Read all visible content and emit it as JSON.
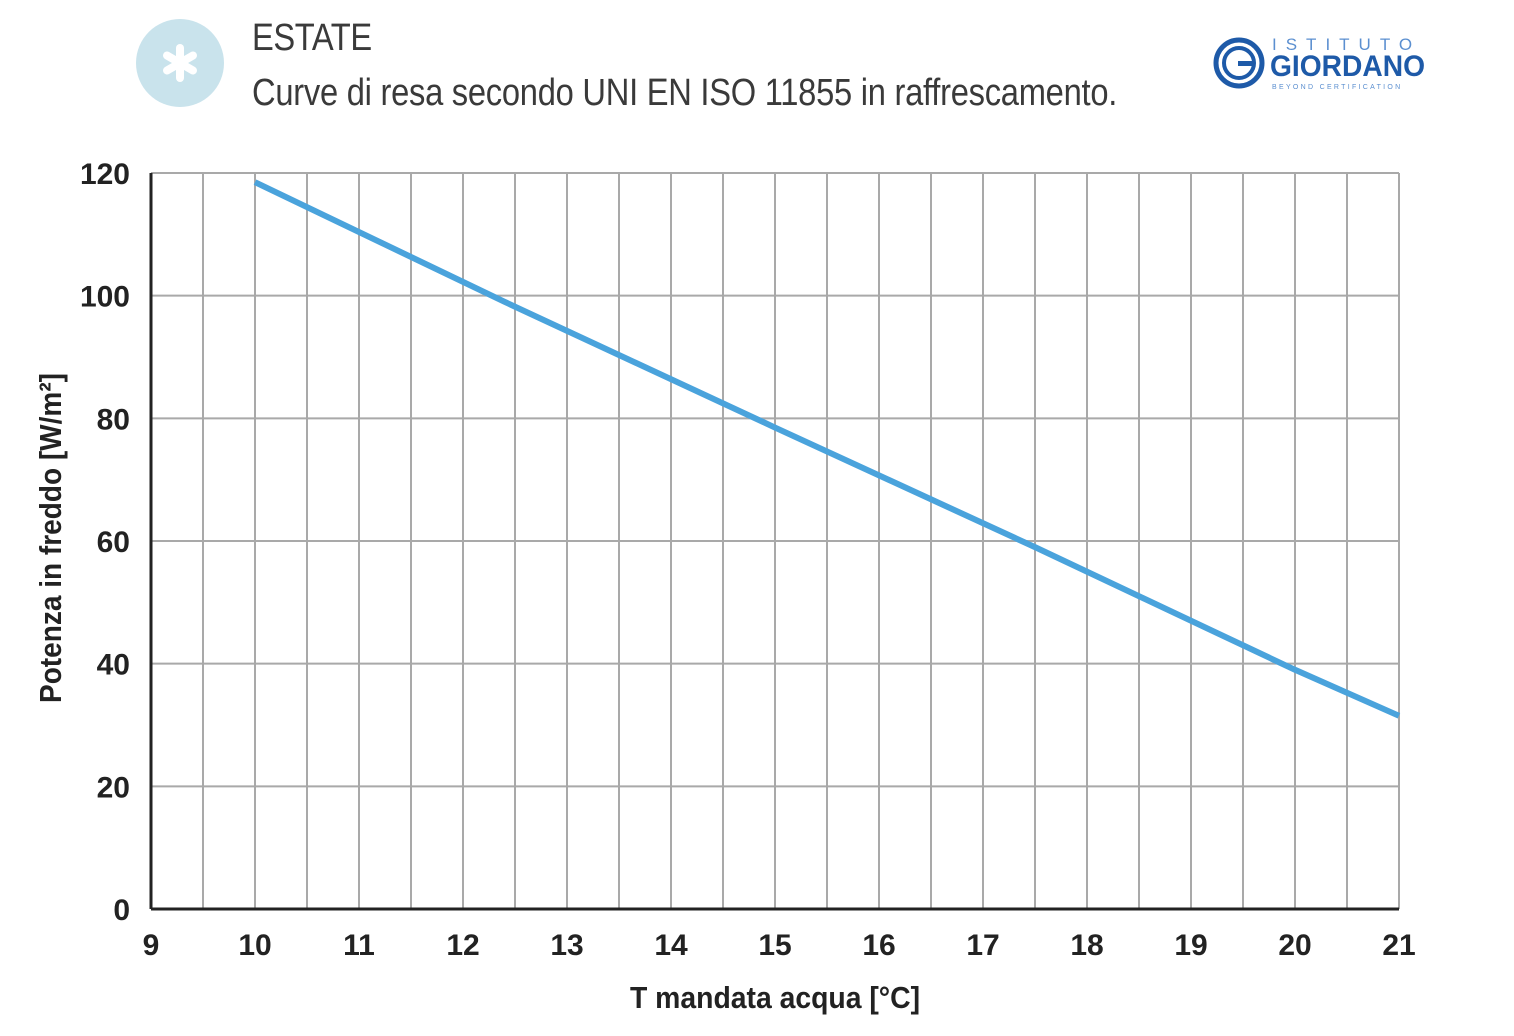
{
  "header": {
    "title": "ESTATE",
    "subtitle": "Curve di resa secondo UNI EN ISO 11855 in raffrescamento.",
    "icon": "snowflake-icon",
    "icon_bg_color": "#c9e3ec"
  },
  "logo": {
    "top_text": "ISTITUTO",
    "main_text": "GIORDANO",
    "tagline": "BEYOND CERTIFICATION",
    "color": "#1e5aa8"
  },
  "chart_data": {
    "type": "line",
    "title": "",
    "xlabel": "T mandata acqua [°C]",
    "ylabel": "Potenza in freddo [W/m²]",
    "xlim": [
      9,
      21
    ],
    "ylim": [
      0,
      120
    ],
    "x_ticks": [
      "9",
      "10",
      "11",
      "12",
      "13",
      "14",
      "15",
      "16",
      "17",
      "18",
      "19",
      "20",
      "21"
    ],
    "y_ticks": [
      "0",
      "20",
      "40",
      "60",
      "80",
      "100",
      "120"
    ],
    "grid": true,
    "series": [
      {
        "color": "#4aa3dc",
        "points": [
          {
            "x": 10,
            "y": 118.5
          },
          {
            "x": 12.4,
            "y": 99
          },
          {
            "x": 15,
            "y": 78.5
          },
          {
            "x": 17.5,
            "y": 59
          },
          {
            "x": 20,
            "y": 39
          },
          {
            "x": 21,
            "y": 31.5
          }
        ]
      }
    ]
  }
}
